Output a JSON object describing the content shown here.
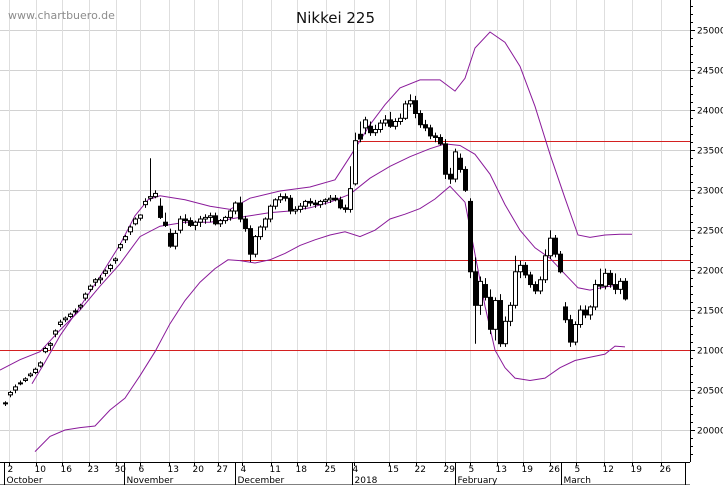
{
  "watermark": "www.chartbuero.de",
  "chart_data": {
    "type": "candlestick",
    "title": "Nikkei 225",
    "y_axis": {
      "position": "right",
      "ylim": [
        19600,
        25380
      ],
      "ticks": [
        20000,
        20500,
        21000,
        21500,
        22000,
        22500,
        23000,
        23500,
        24000,
        24500,
        25000
      ]
    },
    "x_axis": {
      "day_ticks": [
        "2",
        "10",
        "16",
        "23",
        "30",
        "6",
        "13",
        "20",
        "27",
        "4",
        "11",
        "18",
        "25",
        "4",
        "15",
        "22",
        "29",
        "5",
        "13",
        "19",
        "26",
        "5",
        "12",
        "19",
        "26"
      ],
      "month_labels": [
        "October",
        "November",
        "December",
        "2018",
        "February",
        "March"
      ]
    },
    "horizontal_lines": [
      {
        "value": 23620,
        "color": "#d42020"
      },
      {
        "value": 22130,
        "color": "#d42020"
      },
      {
        "value": 21000,
        "color": "#d42020"
      }
    ],
    "bollinger": {
      "color": "#8a1a9a",
      "upper": [
        [
          32,
          20580
        ],
        [
          45,
          20850
        ],
        [
          60,
          21180
        ],
        [
          80,
          21540
        ],
        [
          100,
          21920
        ],
        [
          120,
          22320
        ],
        [
          135,
          22680
        ],
        [
          148,
          22880
        ],
        [
          160,
          22930
        ],
        [
          185,
          22880
        ],
        [
          210,
          22800
        ],
        [
          230,
          22760
        ],
        [
          250,
          22900
        ],
        [
          280,
          22990
        ],
        [
          310,
          23040
        ],
        [
          335,
          23130
        ],
        [
          350,
          23420
        ],
        [
          370,
          23820
        ],
        [
          385,
          24070
        ],
        [
          400,
          24280
        ],
        [
          420,
          24380
        ],
        [
          440,
          24380
        ],
        [
          455,
          24240
        ],
        [
          465,
          24400
        ],
        [
          475,
          24780
        ],
        [
          490,
          24980
        ],
        [
          505,
          24850
        ],
        [
          520,
          24550
        ],
        [
          535,
          24050
        ],
        [
          550,
          23450
        ],
        [
          565,
          22900
        ],
        [
          578,
          22440
        ],
        [
          590,
          22410
        ],
        [
          605,
          22440
        ],
        [
          620,
          22450
        ],
        [
          632,
          22450
        ]
      ],
      "middle": [
        [
          0,
          20750
        ],
        [
          20,
          20880
        ],
        [
          40,
          20980
        ],
        [
          60,
          21250
        ],
        [
          80,
          21500
        ],
        [
          100,
          21800
        ],
        [
          120,
          22080
        ],
        [
          140,
          22420
        ],
        [
          160,
          22550
        ],
        [
          185,
          22600
        ],
        [
          210,
          22600
        ],
        [
          230,
          22640
        ],
        [
          250,
          22680
        ],
        [
          270,
          22720
        ],
        [
          290,
          22740
        ],
        [
          310,
          22780
        ],
        [
          330,
          22850
        ],
        [
          350,
          22950
        ],
        [
          370,
          23150
        ],
        [
          390,
          23300
        ],
        [
          410,
          23420
        ],
        [
          430,
          23520
        ],
        [
          445,
          23580
        ],
        [
          460,
          23560
        ],
        [
          475,
          23450
        ],
        [
          490,
          23200
        ],
        [
          505,
          22820
        ],
        [
          520,
          22500
        ],
        [
          535,
          22280
        ],
        [
          550,
          22150
        ],
        [
          565,
          21950
        ],
        [
          578,
          21780
        ],
        [
          590,
          21750
        ],
        [
          605,
          21790
        ],
        [
          620,
          21820
        ],
        [
          628,
          21780
        ]
      ],
      "lower": [
        [
          35,
          19730
        ],
        [
          50,
          19920
        ],
        [
          65,
          20000
        ],
        [
          80,
          20030
        ],
        [
          95,
          20050
        ],
        [
          110,
          20250
        ],
        [
          125,
          20400
        ],
        [
          140,
          20680
        ],
        [
          155,
          20980
        ],
        [
          170,
          21330
        ],
        [
          185,
          21620
        ],
        [
          200,
          21850
        ],
        [
          215,
          22020
        ],
        [
          228,
          22130
        ],
        [
          240,
          22120
        ],
        [
          255,
          22090
        ],
        [
          270,
          22130
        ],
        [
          285,
          22210
        ],
        [
          300,
          22310
        ],
        [
          315,
          22380
        ],
        [
          330,
          22440
        ],
        [
          345,
          22480
        ],
        [
          360,
          22420
        ],
        [
          375,
          22500
        ],
        [
          390,
          22640
        ],
        [
          405,
          22700
        ],
        [
          420,
          22770
        ],
        [
          435,
          22890
        ],
        [
          450,
          23050
        ],
        [
          465,
          22850
        ],
        [
          475,
          22200
        ],
        [
          485,
          21550
        ],
        [
          495,
          21000
        ],
        [
          505,
          20780
        ],
        [
          515,
          20650
        ],
        [
          530,
          20620
        ],
        [
          545,
          20650
        ],
        [
          560,
          20780
        ],
        [
          575,
          20870
        ],
        [
          590,
          20910
        ],
        [
          605,
          20950
        ],
        [
          615,
          21050
        ],
        [
          625,
          21040
        ]
      ]
    },
    "candles": [
      [
        5,
        20340,
        20360,
        20300,
        20330
      ],
      [
        10,
        20440,
        20490,
        20410,
        20470
      ],
      [
        15,
        20500,
        20570,
        20460,
        20540
      ],
      [
        20,
        20580,
        20620,
        20560,
        20590
      ],
      [
        25,
        20620,
        20660,
        20600,
        20640
      ],
      [
        30,
        20680,
        20720,
        20660,
        20700
      ],
      [
        35,
        20720,
        20780,
        20700,
        20760
      ],
      [
        40,
        20800,
        20860,
        20780,
        20840
      ],
      [
        45,
        20980,
        21040,
        20960,
        21020
      ],
      [
        50,
        21060,
        21100,
        21000,
        21080
      ],
      [
        55,
        21200,
        21260,
        21160,
        21240
      ],
      [
        60,
        21320,
        21380,
        21290,
        21350
      ],
      [
        65,
        21380,
        21420,
        21350,
        21400
      ],
      [
        70,
        21420,
        21470,
        21400,
        21450
      ],
      [
        75,
        21480,
        21520,
        21450,
        21490
      ],
      [
        80,
        21540,
        21580,
        21510,
        21560
      ],
      [
        85,
        21650,
        21720,
        21620,
        21700
      ],
      [
        90,
        21760,
        21820,
        21730,
        21800
      ],
      [
        95,
        21850,
        21900,
        21800,
        21880
      ],
      [
        100,
        21880,
        21940,
        21830,
        21900
      ],
      [
        105,
        21960,
        22010,
        21920,
        21990
      ],
      [
        110,
        22020,
        22080,
        21980,
        22060
      ],
      [
        115,
        22120,
        22160,
        22080,
        22140
      ],
      [
        120,
        22280,
        22340,
        22240,
        22320
      ],
      [
        125,
        22380,
        22440,
        22340,
        22420
      ],
      [
        130,
        22480,
        22560,
        22440,
        22540
      ],
      [
        135,
        22580,
        22660,
        22560,
        22640
      ],
      [
        140,
        22650,
        22700,
        22620,
        22690
      ],
      [
        145,
        22820,
        22900,
        22780,
        22860
      ],
      [
        150,
        22900,
        23400,
        22860,
        22920
      ],
      [
        155,
        22920,
        23000,
        22900,
        22960
      ],
      [
        160,
        22800,
        22900,
        22640,
        22660
      ],
      [
        165,
        22600,
        22720,
        22540,
        22560
      ],
      [
        170,
        22460,
        22520,
        22280,
        22300
      ],
      [
        175,
        22300,
        22500,
        22260,
        22460
      ],
      [
        180,
        22500,
        22680,
        22460,
        22640
      ],
      [
        185,
        22640,
        22700,
        22580,
        22620
      ],
      [
        190,
        22620,
        22660,
        22540,
        22560
      ],
      [
        195,
        22560,
        22620,
        22500,
        22600
      ],
      [
        200,
        22600,
        22680,
        22540,
        22640
      ],
      [
        205,
        22640,
        22700,
        22580,
        22660
      ],
      [
        210,
        22660,
        22720,
        22600,
        22680
      ],
      [
        215,
        22680,
        22720,
        22560,
        22580
      ],
      [
        220,
        22580,
        22640,
        22540,
        22620
      ],
      [
        225,
        22620,
        22680,
        22580,
        22660
      ],
      [
        230,
        22660,
        22760,
        22620,
        22740
      ],
      [
        235,
        22740,
        22860,
        22700,
        22840
      ],
      [
        240,
        22840,
        22920,
        22600,
        22640
      ],
      [
        245,
        22640,
        22680,
        22480,
        22520
      ],
      [
        250,
        22520,
        22560,
        22100,
        22200
      ],
      [
        255,
        22200,
        22440,
        22160,
        22420
      ],
      [
        260,
        22420,
        22560,
        22380,
        22540
      ],
      [
        265,
        22540,
        22660,
        22500,
        22640
      ],
      [
        270,
        22640,
        22820,
        22600,
        22800
      ],
      [
        275,
        22800,
        22900,
        22760,
        22880
      ],
      [
        280,
        22880,
        22960,
        22840,
        22920
      ],
      [
        285,
        22920,
        22960,
        22860,
        22900
      ],
      [
        290,
        22900,
        22940,
        22700,
        22740
      ],
      [
        295,
        22740,
        22800,
        22700,
        22760
      ],
      [
        300,
        22760,
        22840,
        22720,
        22800
      ],
      [
        305,
        22800,
        22880,
        22760,
        22860
      ],
      [
        310,
        22860,
        22900,
        22800,
        22840
      ],
      [
        315,
        22840,
        22880,
        22780,
        22820
      ],
      [
        320,
        22820,
        22880,
        22780,
        22860
      ],
      [
        325,
        22860,
        22900,
        22820,
        22880
      ],
      [
        330,
        22880,
        22940,
        22840,
        22900
      ],
      [
        335,
        22900,
        22940,
        22860,
        22880
      ],
      [
        340,
        22880,
        22920,
        22760,
        22780
      ],
      [
        345,
        22780,
        22820,
        22720,
        22760
      ],
      [
        350,
        22760,
        23300,
        22720,
        23020
      ],
      [
        355,
        23080,
        23720,
        23060,
        23620
      ],
      [
        360,
        23700,
        23860,
        23600,
        23640
      ],
      [
        365,
        23780,
        23920,
        23700,
        23880
      ],
      [
        370,
        23800,
        23860,
        23680,
        23720
      ],
      [
        375,
        23720,
        23820,
        23680,
        23760
      ],
      [
        380,
        23760,
        23880,
        23720,
        23840
      ],
      [
        385,
        23840,
        23940,
        23800,
        23880
      ],
      [
        390,
        23880,
        23980,
        23780,
        23800
      ],
      [
        395,
        23800,
        23900,
        23760,
        23860
      ],
      [
        400,
        23860,
        23960,
        23820,
        23900
      ],
      [
        405,
        23900,
        24120,
        23880,
        24080
      ],
      [
        410,
        24080,
        24200,
        24040,
        24120
      ],
      [
        415,
        24120,
        24180,
        23900,
        23960
      ],
      [
        420,
        23960,
        24000,
        23780,
        23820
      ],
      [
        425,
        23820,
        23880,
        23740,
        23780
      ],
      [
        430,
        23780,
        23820,
        23640,
        23680
      ],
      [
        435,
        23680,
        23720,
        23600,
        23660
      ],
      [
        440,
        23660,
        23700,
        23560,
        23580
      ],
      [
        445,
        23580,
        23640,
        23140,
        23200
      ],
      [
        450,
        23200,
        23280,
        23080,
        23140
      ],
      [
        455,
        23140,
        23520,
        23100,
        23480
      ],
      [
        460,
        23400,
        23460,
        23220,
        23260
      ],
      [
        465,
        23260,
        23300,
        22980,
        23000
      ],
      [
        470,
        22860,
        22900,
        21900,
        21980
      ],
      [
        475,
        21980,
        22160,
        21080,
        21560
      ],
      [
        480,
        21560,
        21920,
        21440,
        21860
      ],
      [
        485,
        21820,
        21900,
        21620,
        21660
      ],
      [
        490,
        21660,
        21760,
        21200,
        21260
      ],
      [
        495,
        21260,
        21660,
        21120,
        21620
      ],
      [
        500,
        21620,
        21700,
        21040,
        21080
      ],
      [
        505,
        21080,
        21420,
        21040,
        21360
      ],
      [
        510,
        21360,
        21600,
        21300,
        21560
      ],
      [
        515,
        21560,
        22180,
        21520,
        21980
      ],
      [
        520,
        21980,
        22120,
        21900,
        22060
      ],
      [
        525,
        22060,
        22100,
        21900,
        21940
      ],
      [
        530,
        21940,
        21980,
        21780,
        21820
      ],
      [
        535,
        21820,
        21860,
        21700,
        21740
      ],
      [
        540,
        21740,
        21920,
        21700,
        21880
      ],
      [
        545,
        21880,
        22260,
        21840,
        22180
      ],
      [
        550,
        22180,
        22500,
        22140,
        22400
      ],
      [
        555,
        22400,
        22440,
        22160,
        22200
      ],
      [
        560,
        22200,
        22240,
        21960,
        21980
      ],
      [
        565,
        21540,
        21600,
        21340,
        21380
      ],
      [
        570,
        21380,
        21440,
        21040,
        21100
      ],
      [
        575,
        21100,
        21360,
        21060,
        21320
      ],
      [
        580,
        21320,
        21560,
        21280,
        21500
      ],
      [
        585,
        21500,
        21560,
        21400,
        21440
      ],
      [
        590,
        21440,
        21560,
        21380,
        21540
      ],
      [
        595,
        21540,
        21880,
        21500,
        21820
      ],
      [
        600,
        21820,
        22020,
        21760,
        21800
      ],
      [
        605,
        21800,
        22020,
        21760,
        21960
      ],
      [
        610,
        21960,
        22000,
        21780,
        21820
      ],
      [
        615,
        21820,
        21960,
        21700,
        21760
      ],
      [
        620,
        21760,
        21900,
        21700,
        21860
      ],
      [
        625,
        21860,
        21900,
        21620,
        21640
      ]
    ]
  }
}
